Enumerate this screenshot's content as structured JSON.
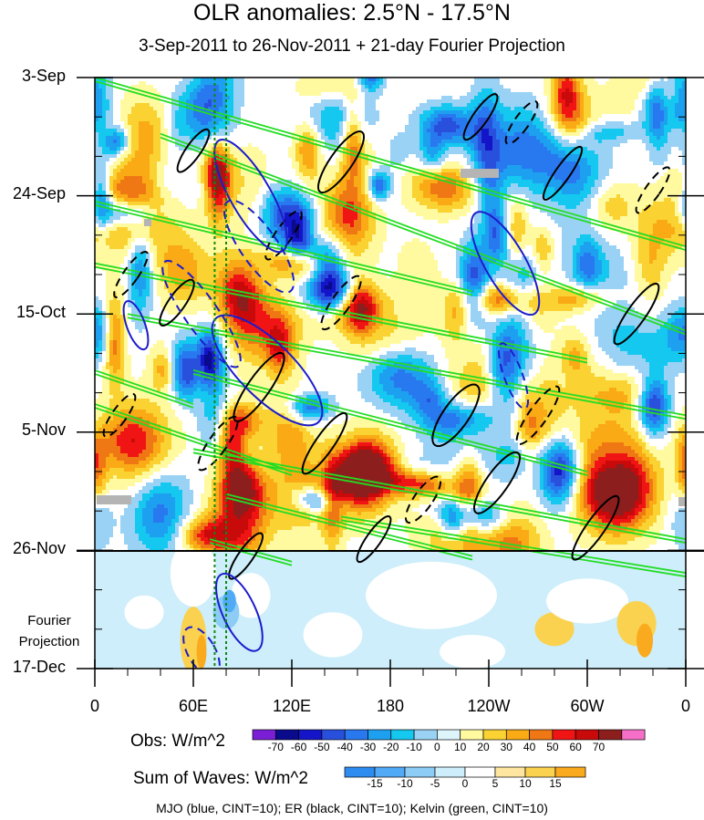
{
  "chart_data": {
    "type": "heatmap",
    "title": "OLR anomalies: 2.5°N - 17.5°N",
    "subtitle": "3-Sep-2011 to 26-Nov-2011 + 21-day Fourier Projection",
    "x_tick_labels": [
      "0",
      "60E",
      "120E",
      "180",
      "120W",
      "60W",
      "0"
    ],
    "x_range_deg_east": [
      0,
      360
    ],
    "y_tick_labels": [
      "3-Sep",
      "24-Sep",
      "15-Oct",
      "5-Nov",
      "26-Nov",
      "17-Dec"
    ],
    "y_days_from_start": [
      0,
      21,
      42,
      63,
      84,
      105
    ],
    "projection_start_label": "26-Nov",
    "projection_label": [
      "Fourier",
      "Projection"
    ],
    "obs_colorbar": {
      "title": "Obs: W/m^2",
      "levels": [
        -70,
        -60,
        -50,
        -40,
        -30,
        -20,
        -10,
        0,
        10,
        20,
        30,
        40,
        50,
        60,
        70
      ],
      "colors": [
        "#7a1fd6",
        "#0a0a8c",
        "#1414c8",
        "#2850dc",
        "#2878f0",
        "#1ea0f0",
        "#14c8f0",
        "#9ad2f5",
        "#ddf4fa",
        "#fffaa0",
        "#fad232",
        "#faaa14",
        "#f07814",
        "#f01414",
        "#c80a0a",
        "#8c1e1e",
        "#f56ec8"
      ]
    },
    "waves_colorbar": {
      "title": "Sum of Waves: W/m^2",
      "levels": [
        -15,
        -10,
        -5,
        0,
        5,
        10,
        15
      ],
      "colors": [
        "#2e8cf0",
        "#50aaf5",
        "#8cccf5",
        "#cdeefa",
        "#ffffff",
        "#ffe6a0",
        "#fad250",
        "#faaa1e"
      ]
    },
    "overlays": [
      {
        "name": "MJO",
        "color": "blue",
        "cint": 10
      },
      {
        "name": "ER",
        "color": "black",
        "cint": 10
      },
      {
        "name": "Kelvin",
        "color": "green",
        "cint": 10
      }
    ],
    "legend_note": "MJO (blue, CINT=10); ER (black, CINT=10); Kelvin (green, CINT=10)"
  }
}
